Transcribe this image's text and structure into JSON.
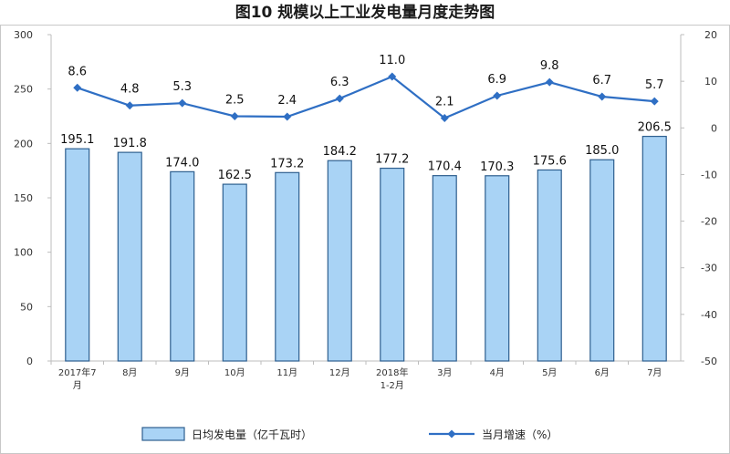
{
  "chart_data": {
    "type": "bar",
    "title": "图10 规模以上工业发电量月度走势图",
    "categories": [
      [
        "2017年7",
        "月"
      ],
      [
        "8月"
      ],
      [
        "9月"
      ],
      [
        "10月"
      ],
      [
        "11月"
      ],
      [
        "12月"
      ],
      [
        "2018年",
        "1-2月"
      ],
      [
        "3月"
      ],
      [
        "4月"
      ],
      [
        "5月"
      ],
      [
        "6月"
      ],
      [
        "7月"
      ]
    ],
    "series": [
      {
        "name": "日均发电量（亿千瓦时）",
        "type": "bar",
        "axis": "left",
        "values": [
          195.1,
          191.8,
          174.0,
          162.5,
          173.2,
          184.2,
          177.2,
          170.4,
          170.3,
          175.6,
          185.0,
          206.5
        ],
        "labels": [
          "195.1",
          "191.8",
          "174.0",
          "162.5",
          "173.2",
          "184.2",
          "177.2",
          "170.4",
          "170.3",
          "175.6",
          "185.0",
          "206.5"
        ]
      },
      {
        "name": "当月增速（%）",
        "type": "line",
        "axis": "right",
        "values": [
          8.6,
          4.8,
          5.3,
          2.5,
          2.4,
          6.3,
          11.0,
          2.1,
          6.9,
          9.8,
          6.7,
          5.7
        ],
        "labels": [
          "8.6",
          "4.8",
          "5.3",
          "2.5",
          "2.4",
          "6.3",
          "11.0",
          "2.1",
          "6.9",
          "9.8",
          "6.7",
          "5.7"
        ]
      }
    ],
    "y_left": {
      "min": 0,
      "max": 300,
      "ticks": [
        "0",
        "50",
        "100",
        "150",
        "200",
        "250",
        "300"
      ]
    },
    "y_right": {
      "min": -50,
      "max": 20,
      "ticks": [
        "-50",
        "-40",
        "-30",
        "-20",
        "-10",
        "0",
        "10",
        "20"
      ]
    },
    "grid": false,
    "legend_position": "bottom",
    "colors": {
      "bar_fill": "#a9d3f5",
      "bar_stroke": "#2e5f8f",
      "line": "#2f6fc4",
      "axis": "#bdbdbd",
      "frame": "#bdbdbd"
    }
  }
}
